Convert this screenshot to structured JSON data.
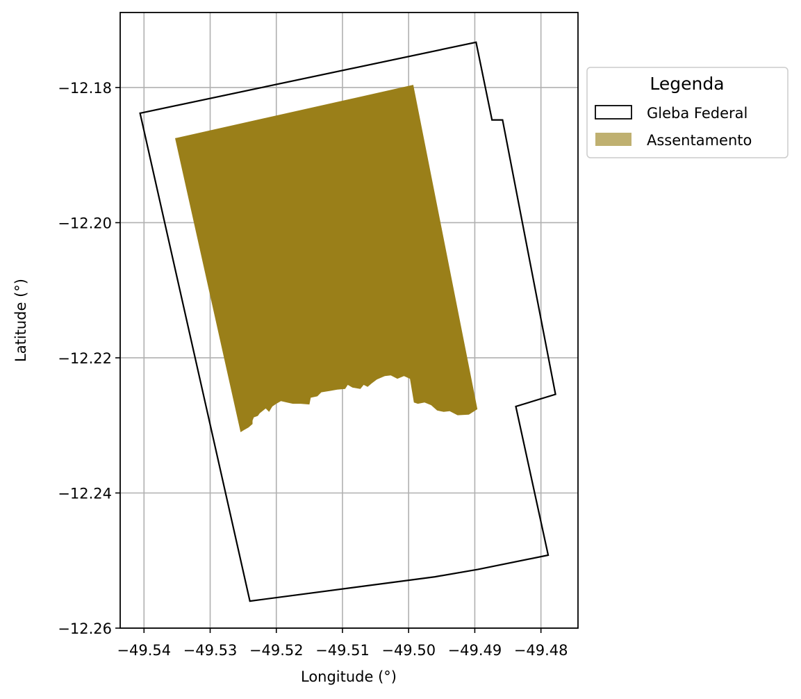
{
  "chart_data": {
    "type": "map",
    "xlabel": "Longitude (°)",
    "ylabel": "Latitude (°)",
    "xlim": [
      -49.5436,
      -49.4744
    ],
    "ylim": [
      -12.26,
      -12.1689
    ],
    "xticks": [
      -49.54,
      -49.53,
      -49.52,
      -49.51,
      -49.5,
      -49.49,
      -49.48
    ],
    "xtick_labels": [
      "−49.54",
      "−49.53",
      "−49.52",
      "−49.51",
      "−49.50",
      "−49.49",
      "−49.48"
    ],
    "yticks": [
      -12.18,
      -12.2,
      -12.22,
      -12.24,
      -12.26
    ],
    "ytick_labels": [
      "−12.18",
      "−12.20",
      "−12.22",
      "−12.24",
      "−12.26"
    ],
    "grid": true,
    "legend": {
      "title": "Legenda",
      "placement": "outside-upper-right",
      "entries": [
        {
          "label": "Gleba Federal",
          "style": "outline"
        },
        {
          "label": "Assentamento",
          "style": "fill"
        }
      ]
    },
    "colors": {
      "gleba_edge": "#000000",
      "assentamento_fill": "#9a7f19",
      "assentamento_legend": "#bfb070",
      "grid": "#b0b0b0"
    },
    "series": [
      {
        "name": "Gleba Federal",
        "type": "polygon",
        "coordinates": [
          [
            -49.5406,
            -12.1838
          ],
          [
            -49.4898,
            -12.1733
          ],
          [
            -49.4874,
            -12.1848
          ],
          [
            -49.4858,
            -12.1848
          ],
          [
            -49.4778,
            -12.2254
          ],
          [
            -49.4838,
            -12.2272
          ],
          [
            -49.4789,
            -12.2492
          ],
          [
            -49.4895,
            -12.2513
          ],
          [
            -49.496,
            -12.2524
          ],
          [
            -49.524,
            -12.256
          ],
          [
            -49.5406,
            -12.1838
          ]
        ]
      },
      {
        "name": "Assentamento",
        "type": "polygon",
        "coordinates": [
          [
            -49.5353,
            -12.1875
          ],
          [
            -49.4993,
            -12.1796
          ],
          [
            -49.4896,
            -12.2276
          ],
          [
            -49.4909,
            -12.2284
          ],
          [
            -49.4926,
            -12.2285
          ],
          [
            -49.4938,
            -12.2279
          ],
          [
            -49.4947,
            -12.228
          ],
          [
            -49.4957,
            -12.2278
          ],
          [
            -49.4966,
            -12.227
          ],
          [
            -49.4976,
            -12.2266
          ],
          [
            -49.4986,
            -12.2268
          ],
          [
            -49.4992,
            -12.2266
          ],
          [
            -49.4998,
            -12.2231
          ],
          [
            -49.5007,
            -12.2227
          ],
          [
            -49.5017,
            -12.2231
          ],
          [
            -49.5027,
            -12.2226
          ],
          [
            -49.5036,
            -12.2227
          ],
          [
            -49.5048,
            -12.2232
          ],
          [
            -49.5056,
            -12.2238
          ],
          [
            -49.5062,
            -12.2243
          ],
          [
            -49.5068,
            -12.224
          ],
          [
            -49.5073,
            -12.2246
          ],
          [
            -49.5085,
            -12.2244
          ],
          [
            -49.5092,
            -12.224
          ],
          [
            -49.5096,
            -12.2246
          ],
          [
            -49.5108,
            -12.2247
          ],
          [
            -49.5119,
            -12.2249
          ],
          [
            -49.5132,
            -12.2251
          ],
          [
            -49.5138,
            -12.2257
          ],
          [
            -49.5148,
            -12.2259
          ],
          [
            -49.515,
            -12.2269
          ],
          [
            -49.5163,
            -12.2268
          ],
          [
            -49.5175,
            -12.2268
          ],
          [
            -49.5184,
            -12.2266
          ],
          [
            -49.5193,
            -12.2264
          ],
          [
            -49.52,
            -12.2268
          ],
          [
            -49.5206,
            -12.2272
          ],
          [
            -49.5211,
            -12.228
          ],
          [
            -49.5216,
            -12.2275
          ],
          [
            -49.5225,
            -12.2282
          ],
          [
            -49.5228,
            -12.2286
          ],
          [
            -49.5234,
            -12.2288
          ],
          [
            -49.5236,
            -12.2293
          ],
          [
            -49.5236,
            -12.2298
          ],
          [
            -49.5242,
            -12.2303
          ],
          [
            -49.5249,
            -12.2307
          ],
          [
            -49.5254,
            -12.231
          ],
          [
            -49.5353,
            -12.1875
          ]
        ]
      }
    ]
  }
}
